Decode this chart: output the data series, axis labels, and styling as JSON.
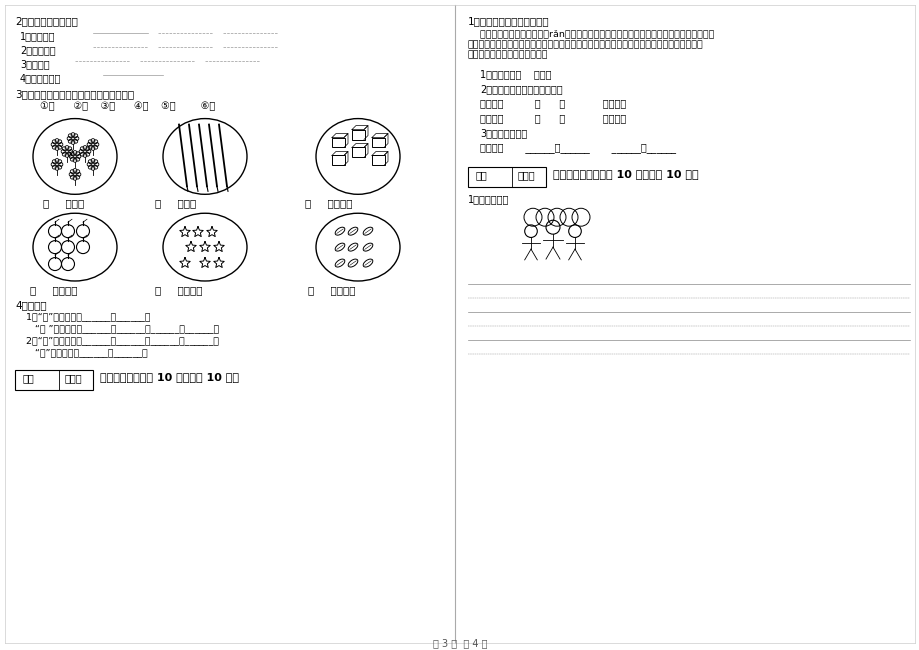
{
  "bg_color": "#ffffff",
  "page_width": 9.2,
  "page_height": 6.5,
  "dpi": 100,
  "left": {
    "s2_title": "2、照样子，写词语。",
    "item1": "1、干干净净",
    "item2": "2、飞来飞去",
    "item3": "3、长长的",
    "item4": "4、一个又一个",
    "s3_title": "3、我会数一数，选择填空。（只填序号）",
    "s3_nums": "①四      ②六    ③八      ④七    ⑤五        ⑥三",
    "lbl1a": "（     ）朵花",
    "lbl1b": "（     ）枝笔",
    "lbl1c": "（     ）块橡皮",
    "lbl2a": "（     ）个苹果",
    "lbl2b": "（     ）颗星星",
    "lbl2c": "（     ）片树叶",
    "s4_title": "4、我会变",
    "s4_l1": "  1、“口”加一笔变成______、______。",
    "s4_l2": "     “口 ”加两笔变成______、______、______、______。",
    "s4_l3": "  2、“日”加一笔变成______、______、______、______。",
    "s4_l4": "     “日”加两笔变成______、______。",
    "s7_box1": "得分",
    "s7_box2": "评卷人",
    "s7_title": "七、阅读题（每题 10 分，共计 10 分）"
  },
  "right": {
    "s1_title": "1、阅读文段，按要求作答。",
    "para1": "    春天来了，小草慢慢地染（rǎn）綠了大地，树木开始长出了娩娩的綠叶，蓝蓝的天空飘着",
    "para2": "淡淡的白云，红红的太阳撒下温暖的阳光。远远一片片野花都开了，美丽的蝴蝶在花丛中飞来",
    "para3": "飞。春天真美丽呀！我爱春天。",
    "q1": "1、这段共有（    ）句。",
    "q2": "2、在短文中选合适的词填空。",
    "q2a": "娩娩的（          ）      （            ）的天空",
    "q2b": "温暖的（          ）      （            ）的太阳",
    "q3": "3、照样子填空。",
    "q3a": "飞来飞去       ______米______       ______米______",
    "s8_box1": "得分",
    "s8_box2": "评卷人",
    "s8_title": "八、看图作答（每题 10 分，共计 10 分）",
    "look_title": "1、看图写话。"
  },
  "footer": "第 3 页  共 4 页"
}
